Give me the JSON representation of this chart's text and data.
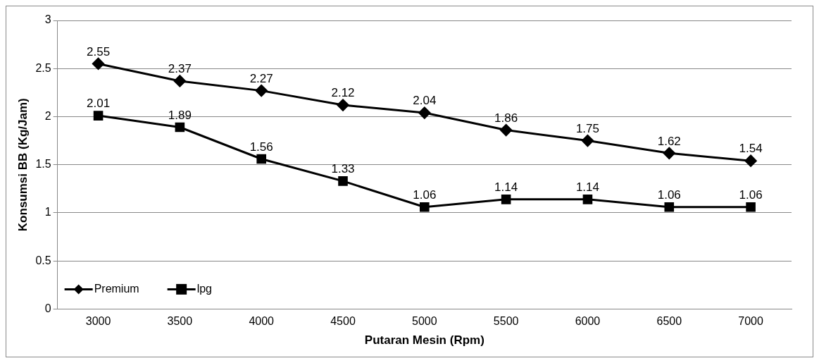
{
  "chart_data": {
    "type": "line",
    "xlabel": "Putaran Mesin (Rpm)",
    "ylabel": "Konsumsi BB (Kg/Jam)",
    "categories": [
      "3000",
      "3500",
      "4000",
      "4500",
      "5000",
      "5500",
      "6000",
      "6500",
      "7000"
    ],
    "series": [
      {
        "name": "Premium",
        "color": "#000000",
        "marker": "diamond",
        "values": [
          2.55,
          2.37,
          2.27,
          2.12,
          2.04,
          1.86,
          1.75,
          1.62,
          1.54
        ]
      },
      {
        "name": "lpg",
        "color": "#000000",
        "marker": "square",
        "values": [
          2.01,
          1.89,
          1.56,
          1.33,
          1.06,
          1.14,
          1.14,
          1.06,
          1.06
        ]
      }
    ],
    "ylim": [
      0,
      3
    ],
    "yticks": [
      0,
      0.5,
      1,
      1.5,
      2,
      2.5,
      3
    ],
    "grid": "y",
    "legend": "bottom left",
    "data_labels": true
  }
}
